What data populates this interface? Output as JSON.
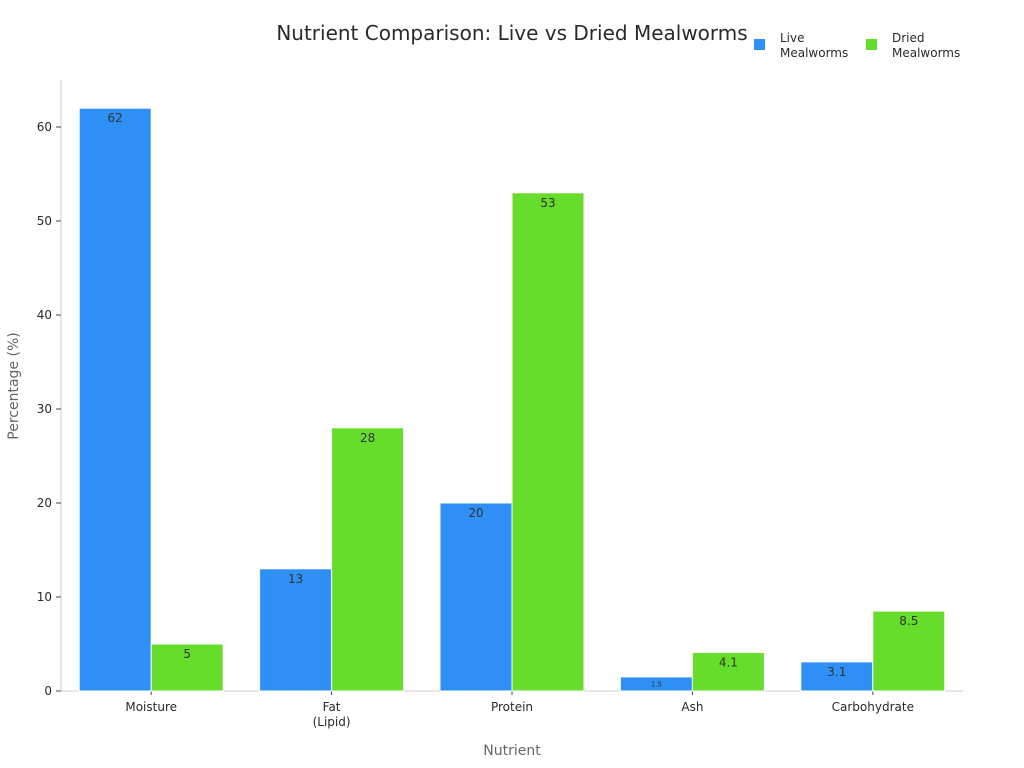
{
  "chart_data": {
    "type": "bar",
    "title": "Nutrient Comparison: Live vs Dried Mealworms",
    "xlabel": "Nutrient",
    "ylabel": "Percentage (%)",
    "categories": [
      [
        "Moisture"
      ],
      [
        "Fat",
        "(Lipid)"
      ],
      [
        "Protein"
      ],
      [
        "Ash"
      ],
      [
        "Carbohydrate"
      ]
    ],
    "series": [
      {
        "name": [
          "Live",
          "Mealworms"
        ],
        "color": "#2e8ff5",
        "values": [
          62,
          13,
          20,
          1.5,
          3.1
        ]
      },
      {
        "name": [
          "Dried",
          "Mealworms"
        ],
        "color": "#66dd2a",
        "values": [
          5,
          28,
          53,
          4.1,
          8.5
        ]
      }
    ],
    "ylim": [
      0,
      65
    ],
    "yticks": [
      0,
      10,
      20,
      30,
      40,
      50,
      60
    ],
    "grid": false,
    "legend": "top-right"
  }
}
